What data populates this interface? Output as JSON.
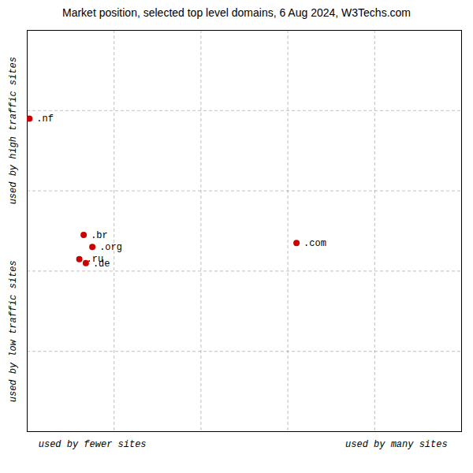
{
  "chart_data": {
    "type": "scatter",
    "title": "Market position, selected top level domains, 6 Aug 2024, W3Techs.com",
    "xlabel": [
      "used by fewer sites",
      "used by many sites"
    ],
    "ylabel": [
      "used by low traffic sites",
      "used by high traffic sites"
    ],
    "labels": [
      ".nf",
      ".com",
      ".br",
      ".org",
      ".ru",
      ".de"
    ],
    "x": [
      0.5,
      62,
      13,
      15,
      12,
      13.5
    ],
    "y": [
      78,
      47,
      49,
      46,
      43,
      42
    ],
    "color": "#cc0000",
    "xlim": [
      0,
      100
    ],
    "ylim": [
      0,
      100
    ],
    "xticks": [
      20,
      40,
      60,
      80
    ],
    "yticks": [
      20,
      40,
      60,
      80
    ],
    "grid": true,
    "tick_labels": false
  }
}
